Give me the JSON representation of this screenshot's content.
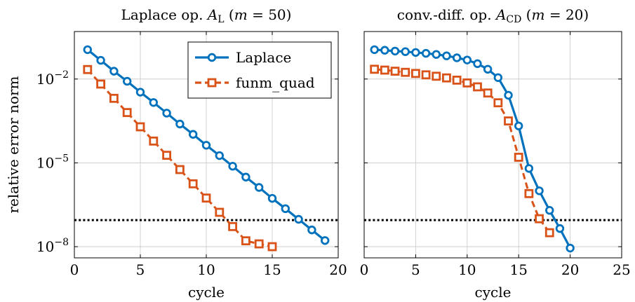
{
  "chart_data": [
    {
      "type": "line",
      "title": "Laplace op. A_L (m = 50)",
      "title_parts": {
        "prefix": "Laplace op. ",
        "sym": "A",
        "sub": "L",
        "suffix": " (m = 50)"
      },
      "xlabel": "cycle",
      "ylabel": "relative error norm",
      "y_scale": "log",
      "xlim": [
        0,
        20
      ],
      "ylim_exp": [
        -8.4,
        -0.3
      ],
      "xticks": [
        0,
        5,
        10,
        15,
        20
      ],
      "yticks": [
        {
          "base": "10",
          "exp": "−2",
          "value_exp": -2
        },
        {
          "base": "10",
          "exp": "−5",
          "value_exp": -5
        },
        {
          "base": "10",
          "exp": "−8",
          "value_exp": -8
        }
      ],
      "grid": true,
      "legend": {
        "position": "top-right",
        "entries": [
          "Laplace",
          "funm_quad"
        ]
      },
      "threshold_log10": -7.05,
      "series": [
        {
          "name": "Laplace",
          "color": "#0072BD",
          "marker": "circle",
          "dash": "solid",
          "x": [
            1,
            2,
            3,
            4,
            5,
            6,
            7,
            8,
            9,
            10,
            11,
            12,
            13,
            14,
            15,
            16,
            17,
            18,
            19
          ],
          "y_log10": [
            -0.95,
            -1.33,
            -1.72,
            -2.08,
            -2.47,
            -2.84,
            -3.22,
            -3.61,
            -3.98,
            -4.37,
            -4.74,
            -5.12,
            -5.51,
            -5.88,
            -6.27,
            -6.64,
            -7.02,
            -7.4,
            -7.78
          ]
        },
        {
          "name": "funm_quad",
          "color": "#D95319",
          "marker": "square",
          "dash": "dashed",
          "x": [
            1,
            2,
            3,
            4,
            5,
            6,
            7,
            8,
            9,
            10,
            11,
            12,
            13,
            14,
            15
          ],
          "y_log10": [
            -1.66,
            -2.18,
            -2.69,
            -3.2,
            -3.71,
            -4.22,
            -4.73,
            -5.24,
            -5.75,
            -6.26,
            -6.77,
            -7.28,
            -7.79,
            -7.9,
            -8.0
          ]
        }
      ]
    },
    {
      "type": "line",
      "title": "conv.-diff. op. A_CD (m = 20)",
      "title_parts": {
        "prefix": "conv.-diff. op. ",
        "sym": "A",
        "sub": "CD",
        "suffix": " (m = 20)"
      },
      "xlabel": "cycle",
      "ylabel": "",
      "y_scale": "log",
      "xlim": [
        0,
        25
      ],
      "ylim_exp": [
        -8.4,
        -0.3
      ],
      "xticks": [
        0,
        5,
        10,
        15,
        20,
        25
      ],
      "grid": true,
      "threshold_log10": -7.05,
      "series": [
        {
          "name": "Laplace",
          "color": "#0072BD",
          "marker": "circle",
          "dash": "solid",
          "x": [
            1,
            2,
            3,
            4,
            5,
            6,
            7,
            8,
            9,
            10,
            11,
            12,
            13,
            14,
            15,
            16,
            17,
            18,
            19,
            20
          ],
          "y_log10": [
            -0.95,
            -0.97,
            -1.0,
            -1.02,
            -1.05,
            -1.08,
            -1.12,
            -1.17,
            -1.24,
            -1.32,
            -1.45,
            -1.65,
            -1.95,
            -2.58,
            -3.68,
            -5.2,
            -6.0,
            -6.7,
            -7.35,
            -8.05
          ]
        },
        {
          "name": "funm_quad",
          "color": "#D95319",
          "marker": "square",
          "dash": "dashed",
          "x": [
            1,
            2,
            3,
            4,
            5,
            6,
            7,
            8,
            9,
            10,
            11,
            12,
            13,
            14,
            15,
            16,
            17,
            18
          ],
          "y_log10": [
            -1.65,
            -1.68,
            -1.72,
            -1.76,
            -1.8,
            -1.85,
            -1.9,
            -1.96,
            -2.04,
            -2.14,
            -2.28,
            -2.5,
            -2.85,
            -3.5,
            -4.8,
            -6.1,
            -7.0,
            -7.5
          ]
        }
      ]
    }
  ]
}
